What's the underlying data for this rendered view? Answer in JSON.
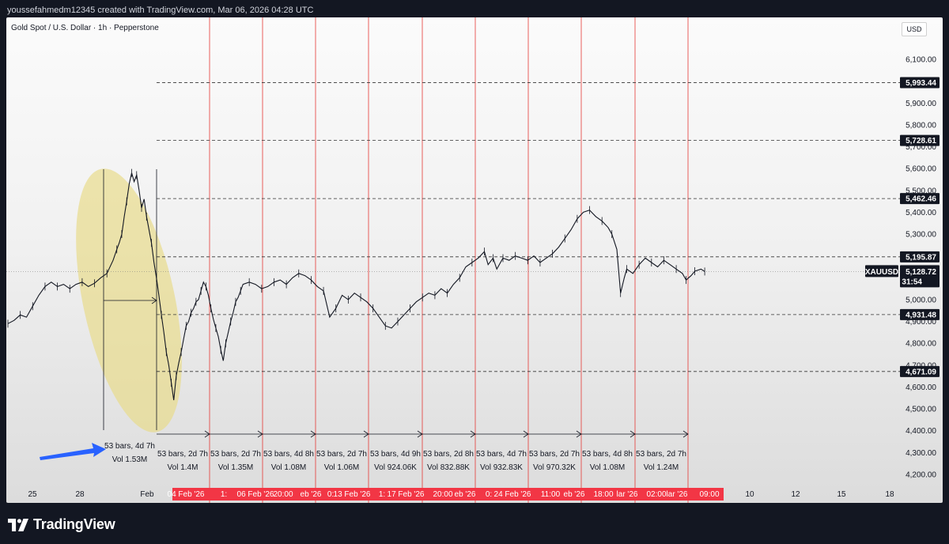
{
  "watermark_top": "youssefahmedm12345 created with TradingView.com, Mar 06, 2026 04:28 UTC",
  "symbol_title": "Gold Spot / U.S. Dollar · 1h · Pepperstone",
  "currency": "USD",
  "brand": "TradingView",
  "colors": {
    "background": "#131722",
    "candle": "#131722",
    "vertical_lines": "#e53935",
    "date_highlight": "#f23645",
    "ellipse_fill": "#e8dc8c",
    "arrow": "#2962ff",
    "label_bg": "#131722"
  },
  "chart_data": {
    "type": "line",
    "symbol": "XAUUSD",
    "last_price": "5,128.72",
    "countdown": "31:54",
    "y_axis": {
      "ticks": [
        6100,
        6000,
        5900,
        5800,
        5700,
        5600,
        5500,
        5400,
        5300,
        5200,
        5000,
        4900,
        4800,
        4700,
        4600,
        4500,
        4400,
        4300,
        4200
      ],
      "tick_labels": [
        "6,100.00",
        "6,000.00",
        "5,900.00",
        "5,800.00",
        "5,700.00",
        "5,600.00",
        "5,500.00",
        "5,400.00",
        "5,300.00",
        "5,200.00",
        "5,000.00",
        "4,900.00",
        "4,800.00",
        "4,700.00",
        "4,600.00",
        "4,500.00",
        "4,400.00",
        "4,300.00",
        "4,200.00"
      ],
      "range": [
        4150,
        6180
      ]
    },
    "x_axis": {
      "tick_labels": [
        "25",
        "28",
        "Feb",
        "10",
        "12",
        "15",
        "18"
      ],
      "highlighted_labels": [
        "04 Feb '26",
        "1:",
        "06 Feb '26",
        "20:00",
        "eb '26",
        "0:",
        "13 Feb '26",
        "1:",
        "17 Feb '26",
        "20:00",
        "eb '26",
        "0:",
        "24 Feb '26",
        "11:00",
        "eb '26",
        "18:00",
        "lar '26",
        "02:00",
        "lar '26",
        "09:00"
      ]
    },
    "horizontal_levels": [
      {
        "value": 5993.44,
        "label": "5,993.44"
      },
      {
        "value": 5728.61,
        "label": "5,728.61"
      },
      {
        "value": 5462.46,
        "label": "5,462.46"
      },
      {
        "value": 5195.87,
        "label": "5,195.87"
      },
      {
        "value": 4931.48,
        "label": "4,931.48"
      },
      {
        "value": 4671.09,
        "label": "4,671.09"
      }
    ],
    "series": [
      {
        "values": [
          [
            0,
            4890
          ],
          [
            5,
            4905
          ],
          [
            10,
            4930
          ],
          [
            15,
            4920
          ],
          [
            20,
            4970
          ],
          [
            25,
            5020
          ],
          [
            30,
            5060
          ],
          [
            35,
            5080
          ],
          [
            40,
            5060
          ],
          [
            45,
            5070
          ],
          [
            50,
            5050
          ],
          [
            55,
            5070
          ],
          [
            60,
            5080
          ],
          [
            65,
            5060
          ],
          [
            70,
            5075
          ],
          [
            75,
            5100
          ],
          [
            80,
            5120
          ],
          [
            85,
            5180
          ],
          [
            88,
            5230
          ],
          [
            90,
            5260
          ],
          [
            92,
            5300
          ],
          [
            94,
            5380
          ],
          [
            96,
            5450
          ],
          [
            98,
            5530
          ],
          [
            100,
            5580
          ],
          [
            102,
            5540
          ],
          [
            104,
            5570
          ],
          [
            106,
            5500
          ],
          [
            108,
            5420
          ],
          [
            110,
            5460
          ],
          [
            112,
            5380
          ],
          [
            114,
            5320
          ],
          [
            116,
            5260
          ],
          [
            118,
            5170
          ],
          [
            120,
            5100
          ],
          [
            122,
            5020
          ],
          [
            124,
            4930
          ],
          [
            126,
            4850
          ],
          [
            128,
            4760
          ],
          [
            130,
            4700
          ],
          [
            132,
            4620
          ],
          [
            134,
            4540
          ],
          [
            136,
            4650
          ],
          [
            138,
            4710
          ],
          [
            140,
            4760
          ],
          [
            142,
            4820
          ],
          [
            144,
            4880
          ],
          [
            146,
            4900
          ],
          [
            148,
            4940
          ],
          [
            150,
            4960
          ],
          [
            152,
            4990
          ],
          [
            154,
            5000
          ],
          [
            156,
            5040
          ],
          [
            158,
            5080
          ],
          [
            160,
            5060
          ],
          [
            162,
            5020
          ],
          [
            164,
            4960
          ],
          [
            166,
            4910
          ],
          [
            168,
            4870
          ],
          [
            170,
            4830
          ],
          [
            172,
            4770
          ],
          [
            174,
            4720
          ],
          [
            176,
            4800
          ],
          [
            178,
            4850
          ],
          [
            180,
            4900
          ],
          [
            182,
            4940
          ],
          [
            184,
            4990
          ],
          [
            186,
            5010
          ],
          [
            188,
            5040
          ],
          [
            190,
            5070
          ],
          [
            195,
            5080
          ],
          [
            200,
            5070
          ],
          [
            205,
            5050
          ],
          [
            210,
            5060
          ],
          [
            215,
            5080
          ],
          [
            220,
            5090
          ],
          [
            225,
            5070
          ],
          [
            230,
            5100
          ],
          [
            235,
            5120
          ],
          [
            240,
            5110
          ],
          [
            245,
            5090
          ],
          [
            250,
            5060
          ],
          [
            255,
            5040
          ],
          [
            260,
            4920
          ],
          [
            265,
            4960
          ],
          [
            270,
            5020
          ],
          [
            275,
            5000
          ],
          [
            280,
            5030
          ],
          [
            285,
            5010
          ],
          [
            290,
            4990
          ],
          [
            295,
            4960
          ],
          [
            300,
            4920
          ],
          [
            305,
            4880
          ],
          [
            310,
            4870
          ],
          [
            315,
            4900
          ],
          [
            320,
            4930
          ],
          [
            325,
            4960
          ],
          [
            330,
            4990
          ],
          [
            335,
            5010
          ],
          [
            340,
            5030
          ],
          [
            345,
            5020
          ],
          [
            350,
            5050
          ],
          [
            355,
            5030
          ],
          [
            360,
            5070
          ],
          [
            365,
            5100
          ],
          [
            370,
            5150
          ],
          [
            375,
            5170
          ],
          [
            380,
            5190
          ],
          [
            385,
            5220
          ],
          [
            388,
            5160
          ],
          [
            392,
            5190
          ],
          [
            395,
            5140
          ],
          [
            400,
            5190
          ],
          [
            405,
            5180
          ],
          [
            410,
            5200
          ],
          [
            415,
            5190
          ],
          [
            420,
            5180
          ],
          [
            425,
            5200
          ],
          [
            430,
            5170
          ],
          [
            435,
            5190
          ],
          [
            440,
            5210
          ],
          [
            445,
            5240
          ],
          [
            450,
            5280
          ],
          [
            455,
            5320
          ],
          [
            460,
            5370
          ],
          [
            465,
            5400
          ],
          [
            470,
            5410
          ],
          [
            475,
            5380
          ],
          [
            480,
            5360
          ],
          [
            485,
            5330
          ],
          [
            488,
            5300
          ],
          [
            492,
            5230
          ],
          [
            495,
            5030
          ],
          [
            498,
            5100
          ],
          [
            500,
            5140
          ],
          [
            505,
            5120
          ],
          [
            510,
            5160
          ],
          [
            515,
            5190
          ],
          [
            520,
            5170
          ],
          [
            525,
            5150
          ],
          [
            530,
            5180
          ],
          [
            535,
            5160
          ],
          [
            540,
            5140
          ],
          [
            545,
            5120
          ],
          [
            548,
            5090
          ],
          [
            552,
            5110
          ],
          [
            555,
            5130
          ],
          [
            560,
            5140
          ],
          [
            563,
            5128.72
          ]
        ]
      }
    ],
    "measurements": [
      {
        "bars": "53 bars, 4d 7h",
        "vol": "Vol 1.53M"
      },
      {
        "bars": "53 bars, 2d 7h",
        "vol": "Vol 1.4M"
      },
      {
        "bars": "53 bars, 2d 7h",
        "vol": "Vol 1.35M"
      },
      {
        "bars": "53 bars, 4d 8h",
        "vol": "Vol 1.08M"
      },
      {
        "bars": "53 bars, 2d 7h",
        "vol": "Vol 1.06M"
      },
      {
        "bars": "53 bars, 4d 9h",
        "vol": "Vol 924.06K"
      },
      {
        "bars": "53 bars, 2d 8h",
        "vol": "Vol 832.88K"
      },
      {
        "bars": "53 bars, 4d 7h",
        "vol": "Vol 932.83K"
      },
      {
        "bars": "53 bars, 2d 7h",
        "vol": "Vol 970.32K"
      },
      {
        "bars": "53 bars, 4d 8h",
        "vol": "Vol 1.08M"
      },
      {
        "bars": "53 bars, 2d 7h",
        "vol": "Vol 1.24M"
      }
    ]
  }
}
